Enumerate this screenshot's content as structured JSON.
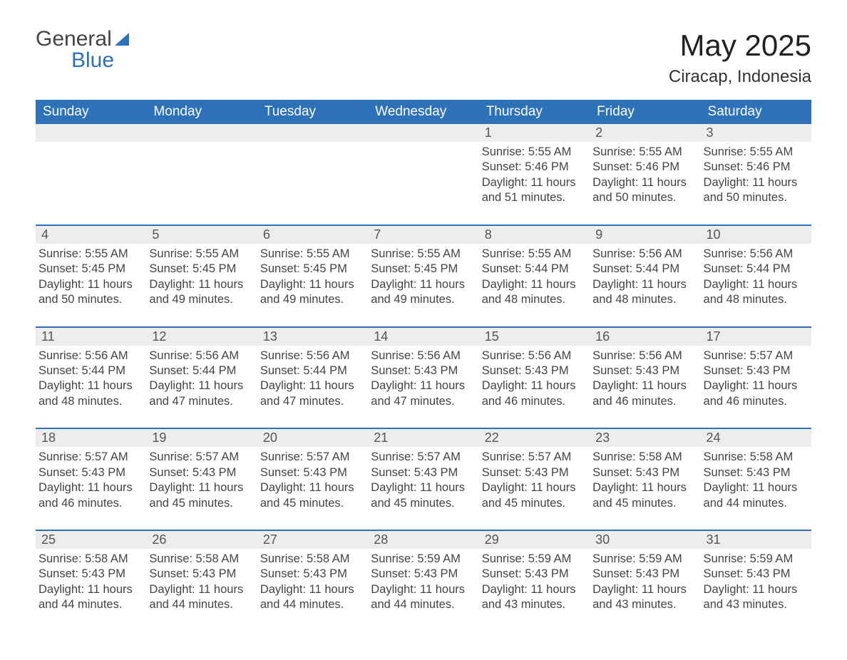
{
  "logo": {
    "word1": "General",
    "word2": "Blue"
  },
  "title": "May 2025",
  "location": "Ciracap, Indonesia",
  "colors": {
    "brand_blue": "#2d71b8",
    "header_text": "#ffffff",
    "daynum_bg": "#ededed",
    "text": "#444444",
    "body_bg": "#ffffff"
  },
  "typography": {
    "title_fontsize": 42,
    "location_fontsize": 24,
    "header_fontsize": 19,
    "daynum_fontsize": 18,
    "details_fontsize": 16.5,
    "font_family": "Arial"
  },
  "calendar": {
    "type": "table",
    "columns": [
      "Sunday",
      "Monday",
      "Tuesday",
      "Wednesday",
      "Thursday",
      "Friday",
      "Saturday"
    ],
    "weeks": [
      [
        null,
        null,
        null,
        null,
        {
          "n": "1",
          "sunrise": "5:55 AM",
          "sunset": "5:46 PM",
          "daylight": "11 hours and 51 minutes."
        },
        {
          "n": "2",
          "sunrise": "5:55 AM",
          "sunset": "5:46 PM",
          "daylight": "11 hours and 50 minutes."
        },
        {
          "n": "3",
          "sunrise": "5:55 AM",
          "sunset": "5:46 PM",
          "daylight": "11 hours and 50 minutes."
        }
      ],
      [
        {
          "n": "4",
          "sunrise": "5:55 AM",
          "sunset": "5:45 PM",
          "daylight": "11 hours and 50 minutes."
        },
        {
          "n": "5",
          "sunrise": "5:55 AM",
          "sunset": "5:45 PM",
          "daylight": "11 hours and 49 minutes."
        },
        {
          "n": "6",
          "sunrise": "5:55 AM",
          "sunset": "5:45 PM",
          "daylight": "11 hours and 49 minutes."
        },
        {
          "n": "7",
          "sunrise": "5:55 AM",
          "sunset": "5:45 PM",
          "daylight": "11 hours and 49 minutes."
        },
        {
          "n": "8",
          "sunrise": "5:55 AM",
          "sunset": "5:44 PM",
          "daylight": "11 hours and 48 minutes."
        },
        {
          "n": "9",
          "sunrise": "5:56 AM",
          "sunset": "5:44 PM",
          "daylight": "11 hours and 48 minutes."
        },
        {
          "n": "10",
          "sunrise": "5:56 AM",
          "sunset": "5:44 PM",
          "daylight": "11 hours and 48 minutes."
        }
      ],
      [
        {
          "n": "11",
          "sunrise": "5:56 AM",
          "sunset": "5:44 PM",
          "daylight": "11 hours and 48 minutes."
        },
        {
          "n": "12",
          "sunrise": "5:56 AM",
          "sunset": "5:44 PM",
          "daylight": "11 hours and 47 minutes."
        },
        {
          "n": "13",
          "sunrise": "5:56 AM",
          "sunset": "5:44 PM",
          "daylight": "11 hours and 47 minutes."
        },
        {
          "n": "14",
          "sunrise": "5:56 AM",
          "sunset": "5:43 PM",
          "daylight": "11 hours and 47 minutes."
        },
        {
          "n": "15",
          "sunrise": "5:56 AM",
          "sunset": "5:43 PM",
          "daylight": "11 hours and 46 minutes."
        },
        {
          "n": "16",
          "sunrise": "5:56 AM",
          "sunset": "5:43 PM",
          "daylight": "11 hours and 46 minutes."
        },
        {
          "n": "17",
          "sunrise": "5:57 AM",
          "sunset": "5:43 PM",
          "daylight": "11 hours and 46 minutes."
        }
      ],
      [
        {
          "n": "18",
          "sunrise": "5:57 AM",
          "sunset": "5:43 PM",
          "daylight": "11 hours and 46 minutes."
        },
        {
          "n": "19",
          "sunrise": "5:57 AM",
          "sunset": "5:43 PM",
          "daylight": "11 hours and 45 minutes."
        },
        {
          "n": "20",
          "sunrise": "5:57 AM",
          "sunset": "5:43 PM",
          "daylight": "11 hours and 45 minutes."
        },
        {
          "n": "21",
          "sunrise": "5:57 AM",
          "sunset": "5:43 PM",
          "daylight": "11 hours and 45 minutes."
        },
        {
          "n": "22",
          "sunrise": "5:57 AM",
          "sunset": "5:43 PM",
          "daylight": "11 hours and 45 minutes."
        },
        {
          "n": "23",
          "sunrise": "5:58 AM",
          "sunset": "5:43 PM",
          "daylight": "11 hours and 45 minutes."
        },
        {
          "n": "24",
          "sunrise": "5:58 AM",
          "sunset": "5:43 PM",
          "daylight": "11 hours and 44 minutes."
        }
      ],
      [
        {
          "n": "25",
          "sunrise": "5:58 AM",
          "sunset": "5:43 PM",
          "daylight": "11 hours and 44 minutes."
        },
        {
          "n": "26",
          "sunrise": "5:58 AM",
          "sunset": "5:43 PM",
          "daylight": "11 hours and 44 minutes."
        },
        {
          "n": "27",
          "sunrise": "5:58 AM",
          "sunset": "5:43 PM",
          "daylight": "11 hours and 44 minutes."
        },
        {
          "n": "28",
          "sunrise": "5:59 AM",
          "sunset": "5:43 PM",
          "daylight": "11 hours and 44 minutes."
        },
        {
          "n": "29",
          "sunrise": "5:59 AM",
          "sunset": "5:43 PM",
          "daylight": "11 hours and 43 minutes."
        },
        {
          "n": "30",
          "sunrise": "5:59 AM",
          "sunset": "5:43 PM",
          "daylight": "11 hours and 43 minutes."
        },
        {
          "n": "31",
          "sunrise": "5:59 AM",
          "sunset": "5:43 PM",
          "daylight": "11 hours and 43 minutes."
        }
      ]
    ],
    "labels": {
      "sunrise": "Sunrise:",
      "sunset": "Sunset:",
      "daylight": "Daylight:"
    }
  }
}
